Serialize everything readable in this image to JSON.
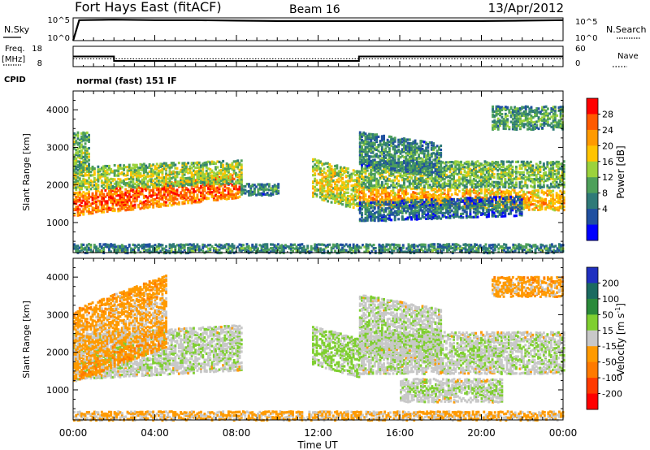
{
  "header": {
    "title": "Fort Hays East (fitACF)",
    "beam": "Beam 16",
    "date": "13/Apr/2012"
  },
  "noise_panel": {
    "left_label": "N.Sky",
    "right_label": "N.Search",
    "left_ticks": [
      "10^5",
      "10^0"
    ],
    "right_ticks": [
      "10^5",
      "10^0"
    ]
  },
  "freq_panel": {
    "left_label": "Freq.",
    "left_unit": "[MHz]",
    "left_ticks": [
      "18",
      "8"
    ],
    "right_label": "Nave",
    "right_ticks": [
      "60",
      "0"
    ]
  },
  "cpid": {
    "label": "CPID",
    "value": "normal (fast) 151 IF"
  },
  "x_axis": {
    "label": "Time UT",
    "ticks": [
      "00:00",
      "04:00",
      "08:00",
      "12:00",
      "16:00",
      "20:00",
      "00:00"
    ]
  },
  "power_colorbar": {
    "label": "Power [dB]",
    "ticks": [
      "28",
      "24",
      "20",
      "16",
      "12",
      "8",
      "4"
    ],
    "colors": [
      "#ff0000",
      "#ff5a00",
      "#ff9a00",
      "#ffc400",
      "#9bd23c",
      "#4ea05a",
      "#2f7a78",
      "#2050a0",
      "#0000ff"
    ]
  },
  "velocity_colorbar": {
    "label_main": "Velocity [m s",
    "label_sup": "-1",
    "label_end": "]",
    "ticks": [
      "200",
      "100",
      "50",
      "15",
      "-15",
      "-50",
      "-100",
      "-200"
    ],
    "colors": [
      "#2030c0",
      "#1a6a60",
      "#2a8a3a",
      "#7fcf30",
      "#c8c8c8",
      "#ff9a00",
      "#ff7a00",
      "#ff3a00",
      "#ff0000"
    ]
  },
  "chart_data": [
    {
      "type": "line",
      "title": "N.Sky / N.Search",
      "x_ticks": [
        "00:00",
        "04:00",
        "08:00",
        "12:00",
        "16:00",
        "20:00",
        "00:00"
      ],
      "ylim_log10": [
        0,
        5
      ],
      "series": [
        {
          "name": "N.Sky",
          "x_hours": [
            0,
            0.3,
            2,
            4,
            6,
            8,
            10,
            12,
            14,
            16,
            18,
            20,
            22,
            24
          ],
          "log10_values": [
            0,
            4.5,
            4.6,
            4.5,
            4.5,
            4.4,
            4.3,
            4.3,
            4.3,
            4.3,
            4.3,
            4.3,
            4.4,
            4.5
          ]
        }
      ]
    },
    {
      "type": "line",
      "title": "Freq. / Nave",
      "ylim_freq": [
        8,
        18
      ],
      "ylim_nave": [
        0,
        60
      ],
      "series": [
        {
          "name": "Freq.",
          "x_hours": [
            0,
            2,
            2,
            14,
            14,
            24
          ],
          "values": [
            13,
            13,
            10.8,
            10.8,
            13,
            13
          ]
        },
        {
          "name": "Nave",
          "x_hours": [
            0,
            24
          ],
          "values": [
            23,
            23
          ]
        }
      ]
    },
    {
      "type": "heatmap",
      "title": "Power [dB]",
      "xlabel": "Time UT",
      "ylabel": "Slant Range [km]",
      "ylim": [
        200,
        4500
      ],
      "yticks": [
        1000,
        2000,
        3000,
        4000
      ],
      "colorbar_range": [
        0,
        32
      ],
      "regions": [
        {
          "t0": 0.0,
          "t1": 8.2,
          "r0": 1300,
          "r1": 1900,
          "center": 1500,
          "slope": 60,
          "value": 24
        },
        {
          "t0": 0.0,
          "t1": 8.2,
          "r0": 1900,
          "r1": 2500,
          "center": 2200,
          "slope": 20,
          "value": 14
        },
        {
          "t0": 0.0,
          "t1": 0.8,
          "r0": 2500,
          "r1": 3500,
          "center": 2900,
          "slope": 0,
          "value": 12
        },
        {
          "t0": 8.2,
          "t1": 10.0,
          "r0": 1800,
          "r1": 2100,
          "center": 1900,
          "slope": 0,
          "value": 8
        },
        {
          "t0": 11.7,
          "t1": 14.0,
          "r0": 1700,
          "r1": 2700,
          "center": 2200,
          "slope": -150,
          "value": 16
        },
        {
          "t0": 14.0,
          "t1": 24.0,
          "r0": 1500,
          "r1": 2000,
          "center": 1700,
          "slope": -10,
          "value": 20
        },
        {
          "t0": 14.0,
          "t1": 24.0,
          "r0": 2000,
          "r1": 2700,
          "center": 2300,
          "slope": 0,
          "value": 12
        },
        {
          "t0": 14.0,
          "t1": 18.0,
          "r0": 2600,
          "r1": 3500,
          "center": 3000,
          "slope": -80,
          "value": 8
        },
        {
          "t0": 14.0,
          "t1": 22.0,
          "r0": 1100,
          "r1": 1600,
          "center": 1300,
          "slope": 20,
          "value": 6
        },
        {
          "t0": 20.5,
          "t1": 24.0,
          "r0": 3500,
          "r1": 4100,
          "center": 3800,
          "slope": 0,
          "value": 10
        },
        {
          "t0": 0.0,
          "t1": 24.0,
          "r0": 200,
          "r1": 500,
          "center": 300,
          "slope": 0,
          "value": 8
        }
      ]
    },
    {
      "type": "heatmap",
      "title": "Velocity [m s-1]",
      "xlabel": "Time UT",
      "ylabel": "Slant Range [km]",
      "ylim": [
        200,
        4500
      ],
      "yticks": [
        1000,
        2000,
        3000,
        4000
      ],
      "colorbar_range": [
        -200,
        200
      ],
      "regions": [
        {
          "t0": 0.0,
          "t1": 8.2,
          "r0": 1300,
          "r1": 2500,
          "center": 1900,
          "slope": 30,
          "value": 0
        },
        {
          "t0": 0.0,
          "t1": 4.5,
          "r0": 1300,
          "r1": 3200,
          "center": 2200,
          "slope": 200,
          "value": -50
        },
        {
          "t0": 11.7,
          "t1": 14.0,
          "r0": 1700,
          "r1": 2700,
          "center": 2200,
          "slope": -150,
          "value": 20
        },
        {
          "t0": 14.0,
          "t1": 24.0,
          "r0": 1500,
          "r1": 2600,
          "center": 2000,
          "slope": 0,
          "value": 0
        },
        {
          "t0": 14.0,
          "t1": 18.0,
          "r0": 2000,
          "r1": 3500,
          "center": 2800,
          "slope": -100,
          "value": 0
        },
        {
          "t0": 16.0,
          "t1": 21.0,
          "r0": 700,
          "r1": 1300,
          "center": 1000,
          "slope": 0,
          "value": 0
        },
        {
          "t0": 20.5,
          "t1": 24.0,
          "r0": 3500,
          "r1": 4000,
          "center": 3750,
          "slope": 0,
          "value": -50
        },
        {
          "t0": 0.0,
          "t1": 24.0,
          "r0": 200,
          "r1": 500,
          "center": 300,
          "slope": 0,
          "value": -40
        }
      ]
    }
  ]
}
